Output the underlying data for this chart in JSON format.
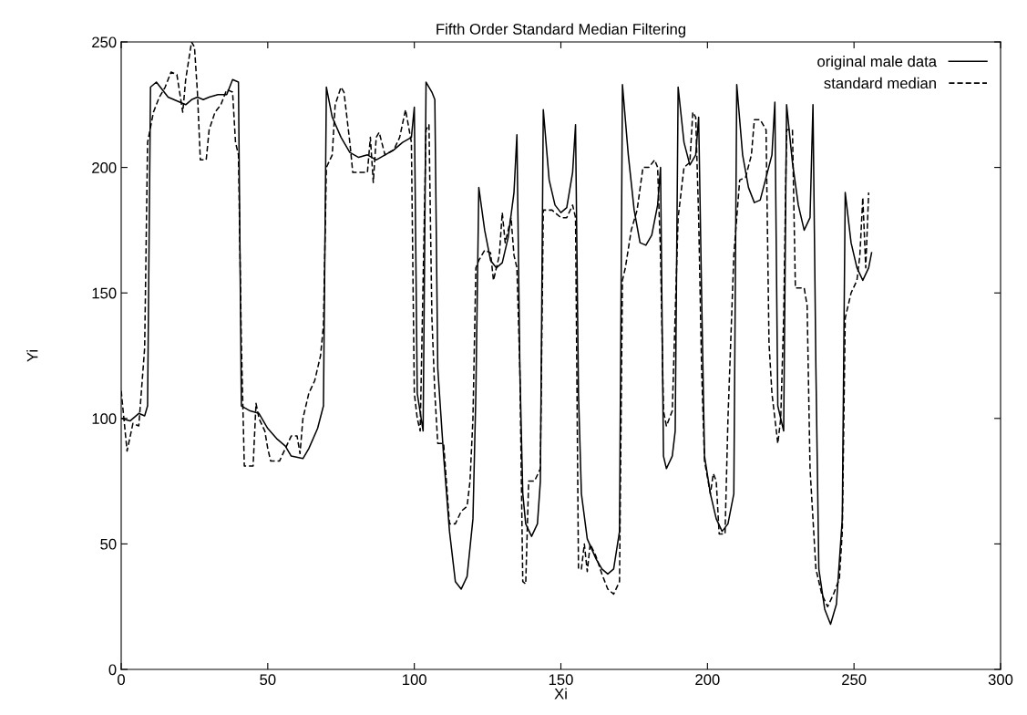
{
  "chart_data": {
    "type": "line",
    "title": "Fifth Order Standard Median Filtering",
    "xlabel": "Xi",
    "ylabel": "Yi",
    "xlim": [
      0,
      300
    ],
    "ylim": [
      0,
      250
    ],
    "xticks": [
      0,
      50,
      100,
      150,
      200,
      250,
      300
    ],
    "yticks": [
      0,
      50,
      100,
      150,
      200,
      250
    ],
    "grid": false,
    "legend": "top right",
    "marker": "none",
    "series": [
      {
        "name": "original male data",
        "color": "#000000",
        "line_style": "solid",
        "x": [
          0,
          3,
          6,
          8,
          9,
          10,
          12,
          14,
          16,
          20,
          22,
          24,
          26,
          28,
          30,
          33,
          36,
          38,
          40,
          41,
          44,
          47,
          50,
          53,
          56,
          58,
          62,
          64,
          67,
          69,
          70,
          72,
          75,
          78,
          81,
          84,
          87,
          90,
          93,
          96,
          99,
          100,
          101,
          103,
          104,
          106,
          107,
          108,
          110,
          112,
          114,
          116,
          118,
          120,
          121,
          122,
          124,
          126,
          128,
          130,
          132,
          134,
          135,
          136,
          137,
          138,
          140,
          142,
          143,
          144,
          146,
          148,
          150,
          152,
          154,
          155,
          156,
          157,
          159,
          162,
          164,
          166,
          168,
          170,
          171,
          173,
          175,
          177,
          179,
          181,
          183,
          184,
          185,
          186,
          188,
          189,
          190,
          192,
          194,
          196,
          197,
          198,
          199,
          201,
          203,
          205,
          207,
          209,
          210,
          212,
          214,
          216,
          218,
          220,
          222,
          223,
          224,
          226,
          227,
          229,
          231,
          233,
          235,
          236,
          237,
          238,
          240,
          242,
          244,
          246,
          247,
          249,
          251,
          253,
          255,
          256
        ],
        "values": [
          100,
          99,
          102,
          101,
          105,
          232,
          234,
          231,
          228,
          226,
          225,
          227,
          228,
          227,
          228,
          229,
          229,
          235,
          234,
          105,
          103,
          102,
          96,
          92,
          89,
          85,
          84,
          88,
          96,
          105,
          232,
          220,
          212,
          206,
          204,
          205,
          203,
          205,
          207,
          210,
          212,
          224,
          110,
          95,
          234,
          230,
          227,
          120,
          85,
          55,
          35,
          32,
          37,
          60,
          110,
          192,
          175,
          163,
          160,
          162,
          172,
          190,
          213,
          120,
          70,
          58,
          53,
          58,
          75,
          223,
          195,
          185,
          182,
          184,
          198,
          217,
          110,
          70,
          52,
          44,
          40,
          38,
          40,
          55,
          233,
          205,
          183,
          170,
          169,
          173,
          185,
          200,
          85,
          80,
          85,
          95,
          232,
          210,
          201,
          205,
          220,
          150,
          85,
          70,
          60,
          55,
          58,
          70,
          233,
          205,
          192,
          186,
          187,
          196,
          205,
          226,
          105,
          95,
          225,
          202,
          185,
          175,
          180,
          225,
          120,
          40,
          24,
          18,
          26,
          60,
          190,
          170,
          160,
          155,
          160,
          166
        ]
      },
      {
        "name": "standard median",
        "color": "#000000",
        "line_style": "dashed",
        "x": [
          0,
          2,
          4,
          6,
          8,
          9,
          11,
          13,
          15,
          17,
          19,
          21,
          22,
          24,
          25,
          26,
          27,
          29,
          30,
          32,
          34,
          36,
          38,
          39,
          40,
          41,
          42,
          45,
          46,
          47,
          49,
          50,
          51,
          54,
          56,
          58,
          60,
          61,
          62,
          64,
          66,
          68,
          69,
          70,
          72,
          73,
          75,
          76,
          78,
          79,
          82,
          84,
          85,
          86,
          87,
          88,
          90,
          93,
          95,
          97,
          99,
          100,
          101,
          102,
          104,
          105,
          106,
          107,
          108,
          110,
          112,
          114,
          116,
          118,
          119,
          120,
          121,
          122,
          124,
          126,
          127,
          129,
          130,
          131,
          133,
          134,
          135,
          136,
          137,
          138,
          139,
          141,
          143,
          144,
          147,
          150,
          152,
          154,
          155,
          156,
          157,
          158,
          159,
          160,
          162,
          164,
          166,
          168,
          170,
          171,
          172,
          174,
          176,
          178,
          180,
          182,
          183,
          184,
          185,
          186,
          188,
          190,
          192,
          194,
          195,
          196,
          197,
          198,
          199,
          201,
          202,
          203,
          204,
          206,
          207,
          209,
          211,
          213,
          215,
          216,
          218,
          220,
          221,
          222,
          224,
          225,
          226,
          227,
          229,
          230,
          233,
          234,
          235,
          236,
          237,
          239,
          241,
          243,
          245,
          246,
          247,
          249,
          251,
          252,
          253,
          254,
          255
        ],
        "values": [
          111,
          87,
          98,
          97,
          128,
          210,
          222,
          228,
          232,
          238,
          237,
          222,
          235,
          250,
          248,
          230,
          203,
          203,
          215,
          222,
          225,
          231,
          230,
          210,
          205,
          130,
          81,
          81,
          106,
          100,
          95,
          88,
          83,
          83,
          88,
          93,
          93,
          86,
          100,
          110,
          115,
          125,
          137,
          200,
          205,
          225,
          232,
          230,
          210,
          198,
          198,
          198,
          212,
          194,
          212,
          214,
          205,
          207,
          212,
          223,
          210,
          110,
          100,
          95,
          215,
          217,
          140,
          110,
          90,
          90,
          58,
          58,
          63,
          65,
          75,
          100,
          160,
          163,
          167,
          166,
          155,
          165,
          182,
          170,
          180,
          165,
          160,
          120,
          35,
          34,
          75,
          75,
          80,
          183,
          183,
          180,
          180,
          185,
          180,
          40,
          40,
          50,
          39,
          50,
          45,
          38,
          32,
          30,
          35,
          155,
          160,
          175,
          183,
          200,
          200,
          203,
          200,
          165,
          103,
          97,
          103,
          180,
          200,
          202,
          222,
          220,
          180,
          120,
          83,
          70,
          78,
          75,
          54,
          54,
          100,
          165,
          195,
          196,
          205,
          219,
          219,
          215,
          130,
          110,
          90,
          100,
          140,
          215,
          215,
          152,
          152,
          145,
          80,
          60,
          40,
          30,
          25,
          30,
          36,
          55,
          140,
          150,
          155,
          165,
          188,
          160,
          190
        ]
      }
    ]
  }
}
